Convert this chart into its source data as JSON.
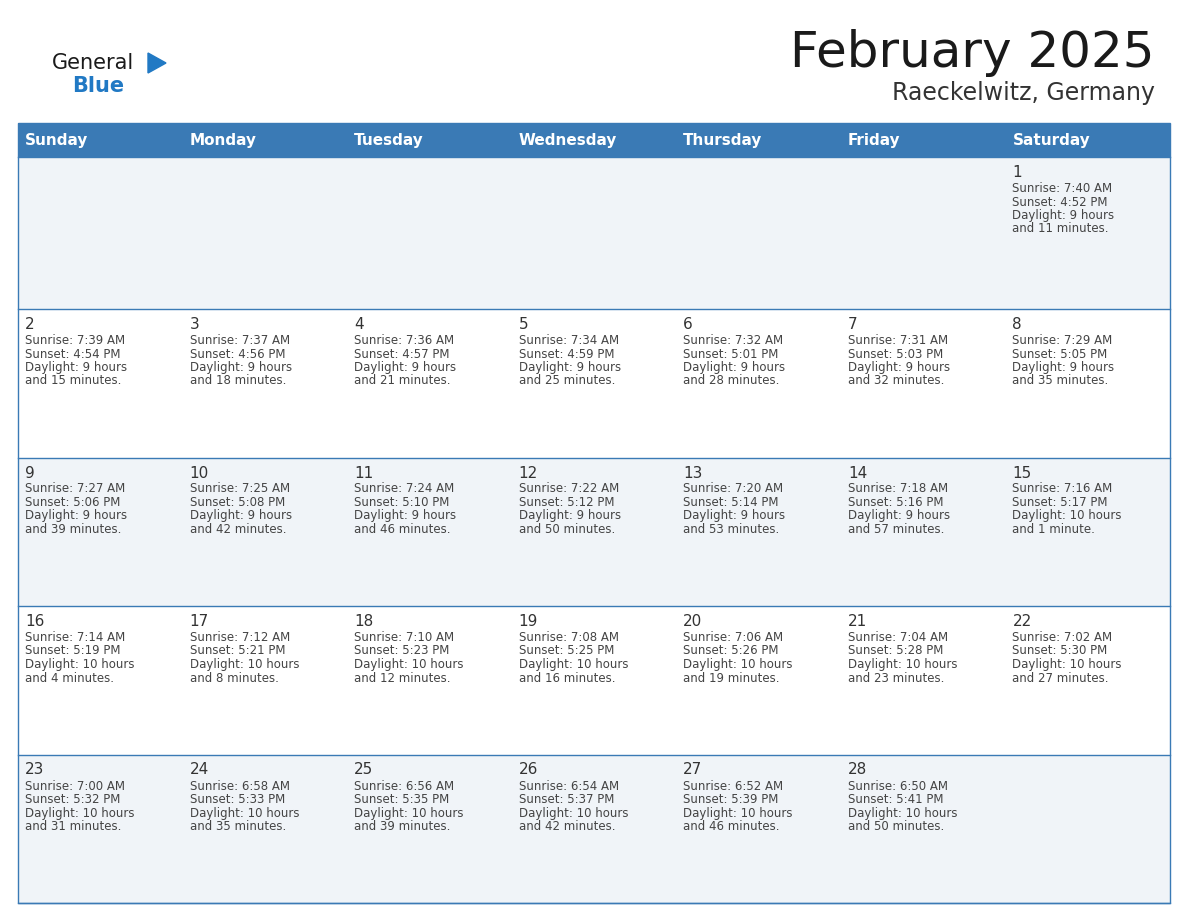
{
  "title": "February 2025",
  "subtitle": "Raeckelwitz, Germany",
  "days_of_week": [
    "Sunday",
    "Monday",
    "Tuesday",
    "Wednesday",
    "Thursday",
    "Friday",
    "Saturday"
  ],
  "header_bg": "#3a7ab5",
  "header_text": "#ffffff",
  "cell_bg_row0": "#f0f4f8",
  "cell_bg_row1": "#ffffff",
  "cell_bg_row2": "#f0f4f8",
  "cell_bg_row3": "#ffffff",
  "cell_bg_row4": "#f0f4f8",
  "row_line_color": "#3a7ab5",
  "text_color": "#444444",
  "day_number_color": "#333333",
  "logo_general_color": "#1a1a1a",
  "logo_blue_color": "#2179c4",
  "title_color": "#1a1a1a",
  "subtitle_color": "#333333",
  "calendar_data": [
    [
      null,
      null,
      null,
      null,
      null,
      null,
      {
        "day": 1,
        "sunrise": "7:40 AM",
        "sunset": "4:52 PM",
        "daylight": "9 hours and 11 minutes."
      }
    ],
    [
      {
        "day": 2,
        "sunrise": "7:39 AM",
        "sunset": "4:54 PM",
        "daylight": "9 hours and 15 minutes."
      },
      {
        "day": 3,
        "sunrise": "7:37 AM",
        "sunset": "4:56 PM",
        "daylight": "9 hours and 18 minutes."
      },
      {
        "day": 4,
        "sunrise": "7:36 AM",
        "sunset": "4:57 PM",
        "daylight": "9 hours and 21 minutes."
      },
      {
        "day": 5,
        "sunrise": "7:34 AM",
        "sunset": "4:59 PM",
        "daylight": "9 hours and 25 minutes."
      },
      {
        "day": 6,
        "sunrise": "7:32 AM",
        "sunset": "5:01 PM",
        "daylight": "9 hours and 28 minutes."
      },
      {
        "day": 7,
        "sunrise": "7:31 AM",
        "sunset": "5:03 PM",
        "daylight": "9 hours and 32 minutes."
      },
      {
        "day": 8,
        "sunrise": "7:29 AM",
        "sunset": "5:05 PM",
        "daylight": "9 hours and 35 minutes."
      }
    ],
    [
      {
        "day": 9,
        "sunrise": "7:27 AM",
        "sunset": "5:06 PM",
        "daylight": "9 hours and 39 minutes."
      },
      {
        "day": 10,
        "sunrise": "7:25 AM",
        "sunset": "5:08 PM",
        "daylight": "9 hours and 42 minutes."
      },
      {
        "day": 11,
        "sunrise": "7:24 AM",
        "sunset": "5:10 PM",
        "daylight": "9 hours and 46 minutes."
      },
      {
        "day": 12,
        "sunrise": "7:22 AM",
        "sunset": "5:12 PM",
        "daylight": "9 hours and 50 minutes."
      },
      {
        "day": 13,
        "sunrise": "7:20 AM",
        "sunset": "5:14 PM",
        "daylight": "9 hours and 53 minutes."
      },
      {
        "day": 14,
        "sunrise": "7:18 AM",
        "sunset": "5:16 PM",
        "daylight": "9 hours and 57 minutes."
      },
      {
        "day": 15,
        "sunrise": "7:16 AM",
        "sunset": "5:17 PM",
        "daylight": "10 hours and 1 minute."
      }
    ],
    [
      {
        "day": 16,
        "sunrise": "7:14 AM",
        "sunset": "5:19 PM",
        "daylight": "10 hours and 4 minutes."
      },
      {
        "day": 17,
        "sunrise": "7:12 AM",
        "sunset": "5:21 PM",
        "daylight": "10 hours and 8 minutes."
      },
      {
        "day": 18,
        "sunrise": "7:10 AM",
        "sunset": "5:23 PM",
        "daylight": "10 hours and 12 minutes."
      },
      {
        "day": 19,
        "sunrise": "7:08 AM",
        "sunset": "5:25 PM",
        "daylight": "10 hours and 16 minutes."
      },
      {
        "day": 20,
        "sunrise": "7:06 AM",
        "sunset": "5:26 PM",
        "daylight": "10 hours and 19 minutes."
      },
      {
        "day": 21,
        "sunrise": "7:04 AM",
        "sunset": "5:28 PM",
        "daylight": "10 hours and 23 minutes."
      },
      {
        "day": 22,
        "sunrise": "7:02 AM",
        "sunset": "5:30 PM",
        "daylight": "10 hours and 27 minutes."
      }
    ],
    [
      {
        "day": 23,
        "sunrise": "7:00 AM",
        "sunset": "5:32 PM",
        "daylight": "10 hours and 31 minutes."
      },
      {
        "day": 24,
        "sunrise": "6:58 AM",
        "sunset": "5:33 PM",
        "daylight": "10 hours and 35 minutes."
      },
      {
        "day": 25,
        "sunrise": "6:56 AM",
        "sunset": "5:35 PM",
        "daylight": "10 hours and 39 minutes."
      },
      {
        "day": 26,
        "sunrise": "6:54 AM",
        "sunset": "5:37 PM",
        "daylight": "10 hours and 42 minutes."
      },
      {
        "day": 27,
        "sunrise": "6:52 AM",
        "sunset": "5:39 PM",
        "daylight": "10 hours and 46 minutes."
      },
      {
        "day": 28,
        "sunrise": "6:50 AM",
        "sunset": "5:41 PM",
        "daylight": "10 hours and 50 minutes."
      },
      null
    ]
  ]
}
